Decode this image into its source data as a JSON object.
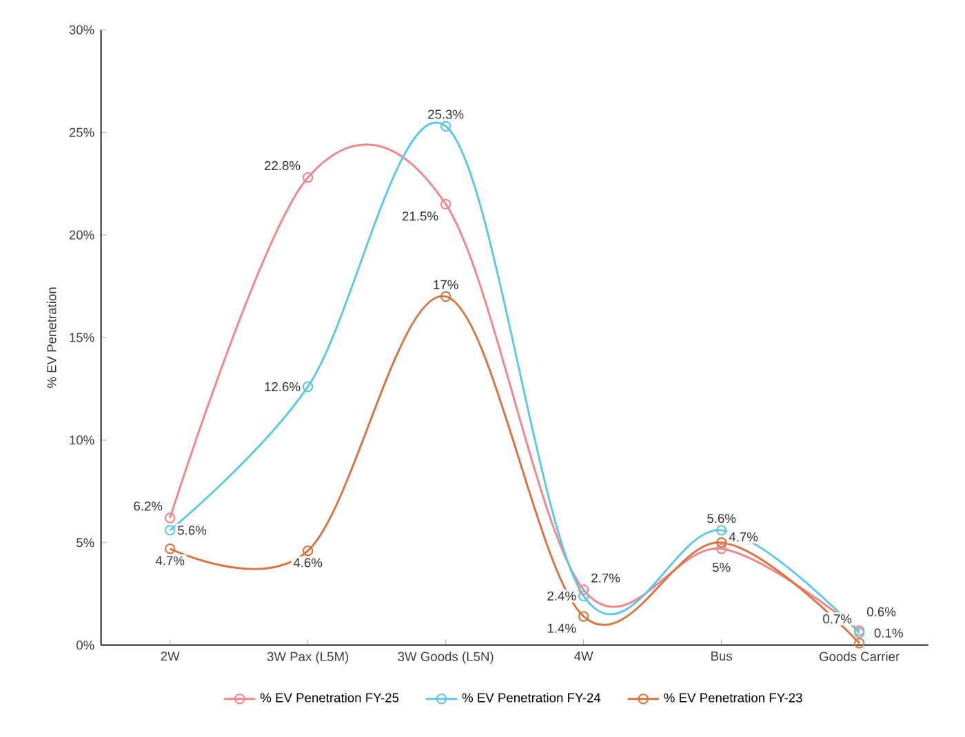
{
  "chart_data": {
    "type": "line",
    "ylabel": "% EV Penetration",
    "categories": [
      "2W",
      "3W Pax (L5M)",
      "3W Goods (L5N)",
      "4W",
      "Bus",
      "Goods Carrier"
    ],
    "series": [
      {
        "name": "% EV Penetration FY-25",
        "color": "#f4858a",
        "values": [
          6.2,
          22.8,
          21.5,
          2.7,
          4.7,
          0.7
        ],
        "value_labels": [
          "6.2%",
          "22.8%",
          "21.5%",
          "2.7%",
          "4.7%",
          "0.7%"
        ]
      },
      {
        "name": "% EV Penetration FY-24",
        "color": "#5bc8ea",
        "values": [
          5.6,
          12.6,
          25.3,
          2.4,
          5.6,
          0.6
        ],
        "value_labels": [
          "5.6%",
          "12.6%",
          "25.3%",
          "2.4%",
          "5.6%",
          "0.6%"
        ]
      },
      {
        "name": "% EV Penetration FY-23",
        "color": "#d9733f",
        "values": [
          4.7,
          4.6,
          17,
          1.4,
          5,
          0.1
        ],
        "value_labels": [
          "4.7%",
          "4.6%",
          "17%",
          "1.4%",
          "5%",
          "0.1%"
        ]
      }
    ],
    "ylim": [
      0,
      30
    ],
    "yticks": [
      {
        "value": 0,
        "label": "0%"
      },
      {
        "value": 5,
        "label": "5%"
      },
      {
        "value": 10,
        "label": "10%"
      },
      {
        "value": 15,
        "label": "15%"
      },
      {
        "value": 20,
        "label": "20%"
      },
      {
        "value": 25,
        "label": "25%"
      },
      {
        "value": 30,
        "label": "30%"
      }
    ],
    "legend": "bottom",
    "marker": "circle",
    "line_style": "solid"
  }
}
